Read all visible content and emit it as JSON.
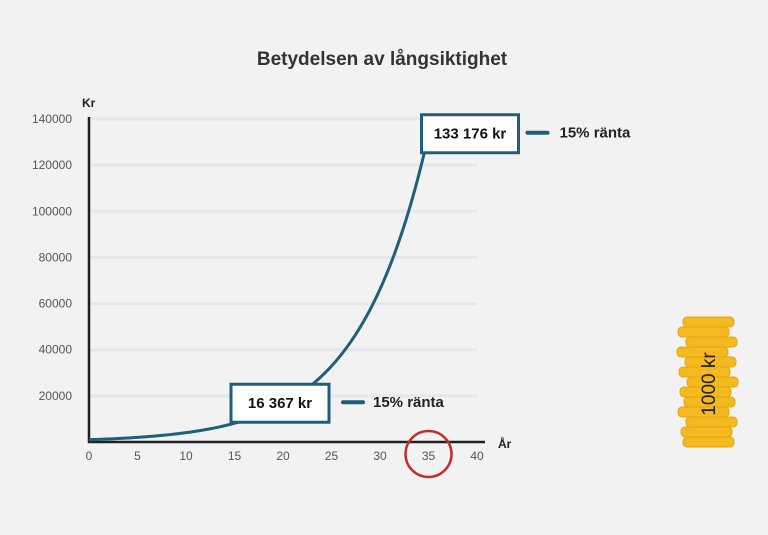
{
  "chart_data": {
    "type": "line",
    "title": "Betydelsen av långsiktighet",
    "xlabel": "År",
    "ylabel": "Kr",
    "xlim": [
      0,
      40
    ],
    "ylim": [
      0,
      140000
    ],
    "x_ticks": [
      "0",
      "5",
      "10",
      "15",
      "20",
      "25",
      "30",
      "35",
      "40"
    ],
    "y_ticks": [
      "20000",
      "40000",
      "60000",
      "80000",
      "100000",
      "120000",
      "140000"
    ],
    "grid": true,
    "series": [
      {
        "name": "15% ränta",
        "color": "#1f5f7a",
        "x": [
          0,
          5,
          10,
          15,
          20,
          25,
          30,
          35
        ],
        "y": [
          1000,
          2011,
          4046,
          8137,
          16367,
          32919,
          66212,
          133176
        ]
      }
    ],
    "annotations": [
      {
        "x": 20,
        "y": 16367,
        "text": "16 367 kr",
        "legend": "15% ränta"
      },
      {
        "x": 35,
        "y": 133176,
        "text": "133 176 kr",
        "legend": "15% ränta"
      }
    ],
    "highlight_x": 35,
    "highlight_color": "#c0302b"
  },
  "coin_stack": {
    "label": "1000 kr",
    "color": "#f5b920"
  }
}
